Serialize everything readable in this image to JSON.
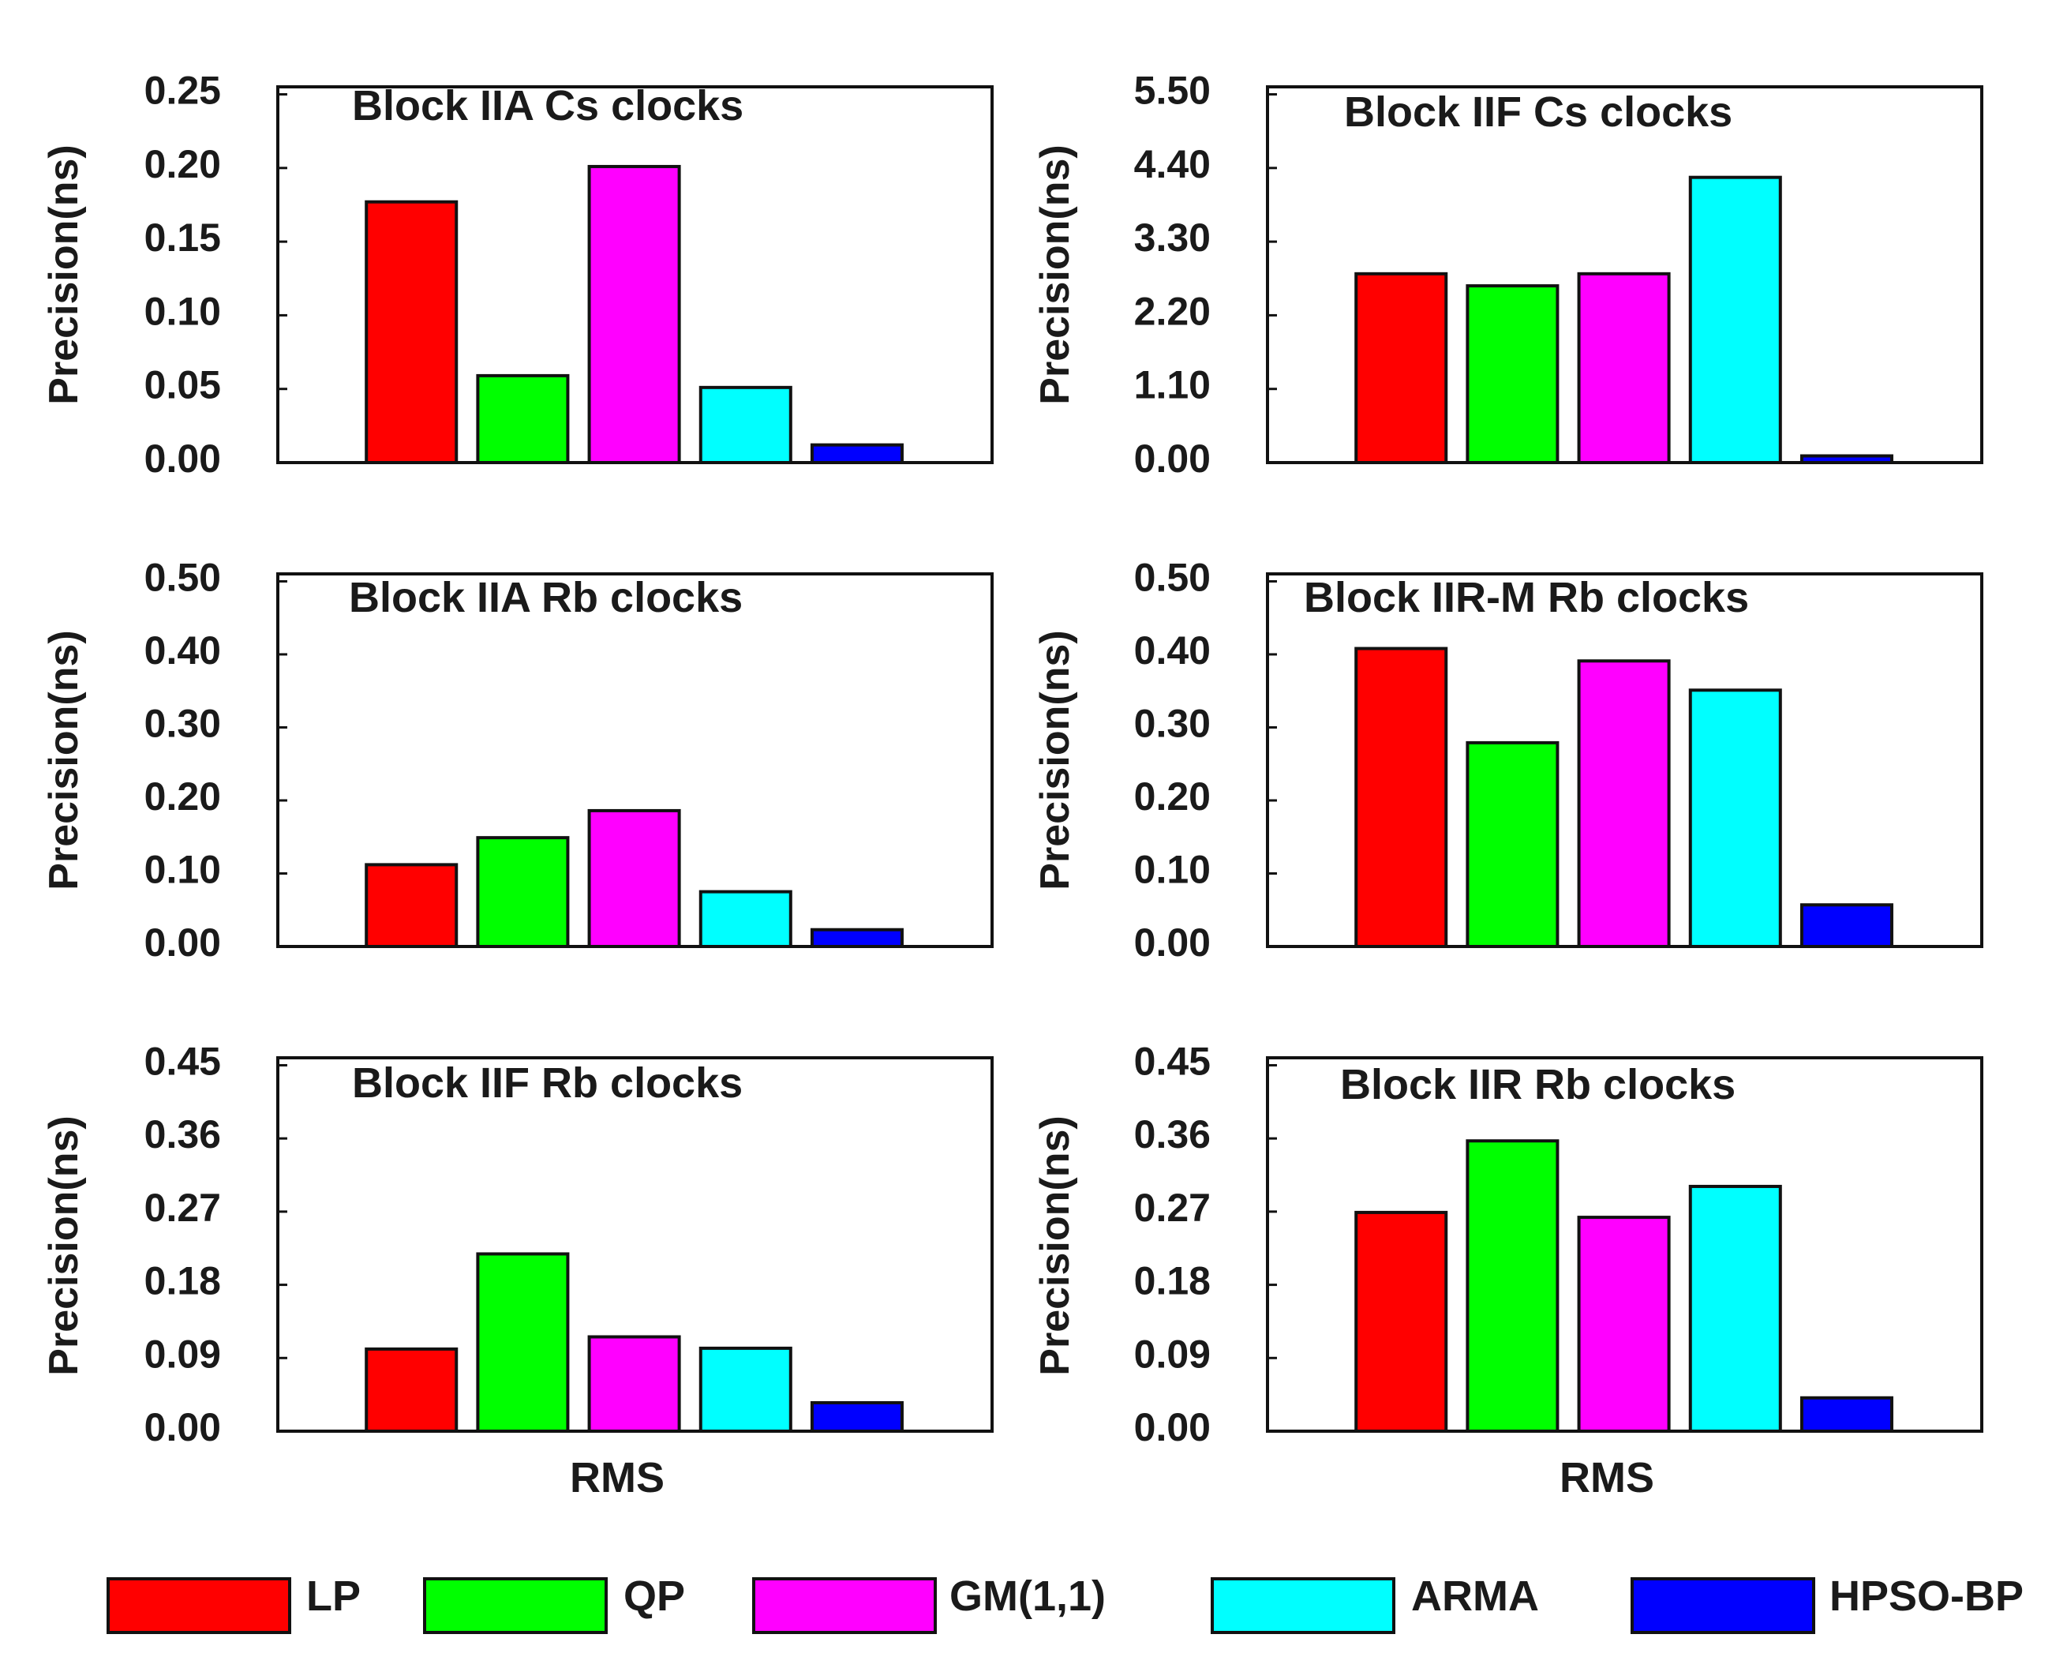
{
  "chart_data": [
    {
      "type": "bar",
      "title": "Block IIA Cs clocks",
      "ylabel": "Precision(ns)",
      "xlabel": "",
      "ylim": [
        0,
        0.25
      ],
      "yticks": [
        "0.00",
        "0.05",
        "0.10",
        "0.15",
        "0.20",
        "0.25"
      ],
      "categories": [
        "LP",
        "QP",
        "GM(1,1)",
        "ARMA",
        "HPSO-BP"
      ],
      "values": [
        0.177,
        0.059,
        0.201,
        0.051,
        0.012
      ]
    },
    {
      "type": "bar",
      "title": "Block IIF Cs clocks",
      "ylabel": "Precision(ns)",
      "xlabel": "",
      "ylim": [
        0,
        5.5
      ],
      "yticks": [
        "0.00",
        "1.10",
        "2.20",
        "3.30",
        "4.40",
        "5.50"
      ],
      "categories": [
        "LP",
        "QP",
        "GM(1,1)",
        "ARMA",
        "HPSO-BP"
      ],
      "values": [
        2.82,
        2.64,
        2.82,
        4.26,
        0.1
      ]
    },
    {
      "type": "bar",
      "title": "Block IIA Rb clocks",
      "ylabel": "Precision(ns)",
      "xlabel": "",
      "ylim": [
        0,
        0.5
      ],
      "yticks": [
        "0.00",
        "0.10",
        "0.20",
        "0.30",
        "0.40",
        "0.50"
      ],
      "categories": [
        "LP",
        "QP",
        "GM(1,1)",
        "ARMA",
        "HPSO-BP"
      ],
      "values": [
        0.112,
        0.149,
        0.186,
        0.075,
        0.023
      ]
    },
    {
      "type": "bar",
      "title": "Block IIR-M Rb clocks",
      "ylabel": "Precision(ns)",
      "xlabel": "",
      "ylim": [
        0,
        0.5
      ],
      "yticks": [
        "0.00",
        "0.10",
        "0.20",
        "0.30",
        "0.40",
        "0.50"
      ],
      "categories": [
        "LP",
        "QP",
        "GM(1,1)",
        "ARMA",
        "HPSO-BP"
      ],
      "values": [
        0.408,
        0.279,
        0.391,
        0.351,
        0.057
      ]
    },
    {
      "type": "bar",
      "title": "Block IIF Rb clocks",
      "ylabel": "Precision(ns)",
      "xlabel": "RMS",
      "ylim": [
        0,
        0.45
      ],
      "yticks": [
        "0.00",
        "0.09",
        "0.18",
        "0.27",
        "0.36",
        "0.45"
      ],
      "categories": [
        "LP",
        "QP",
        "GM(1,1)",
        "ARMA",
        "HPSO-BP"
      ],
      "values": [
        0.101,
        0.218,
        0.116,
        0.102,
        0.035
      ]
    },
    {
      "type": "bar",
      "title": "Block IIR Rb clocks",
      "ylabel": "Precision(ns)",
      "xlabel": "RMS",
      "ylim": [
        0,
        0.45
      ],
      "yticks": [
        "0.00",
        "0.09",
        "0.18",
        "0.27",
        "0.36",
        "0.45"
      ],
      "categories": [
        "LP",
        "QP",
        "GM(1,1)",
        "ARMA",
        "HPSO-BP"
      ],
      "values": [
        0.269,
        0.357,
        0.263,
        0.301,
        0.041
      ]
    }
  ],
  "legend": [
    {
      "label": "LP",
      "color": "#ff0000"
    },
    {
      "label": "QP",
      "color": "#00ff00"
    },
    {
      "label": "GM(1,1)",
      "color": "#ff00ff"
    },
    {
      "label": "ARMA",
      "color": "#00ffff"
    },
    {
      "label": "HPSO-BP",
      "color": "#0000ff"
    }
  ]
}
